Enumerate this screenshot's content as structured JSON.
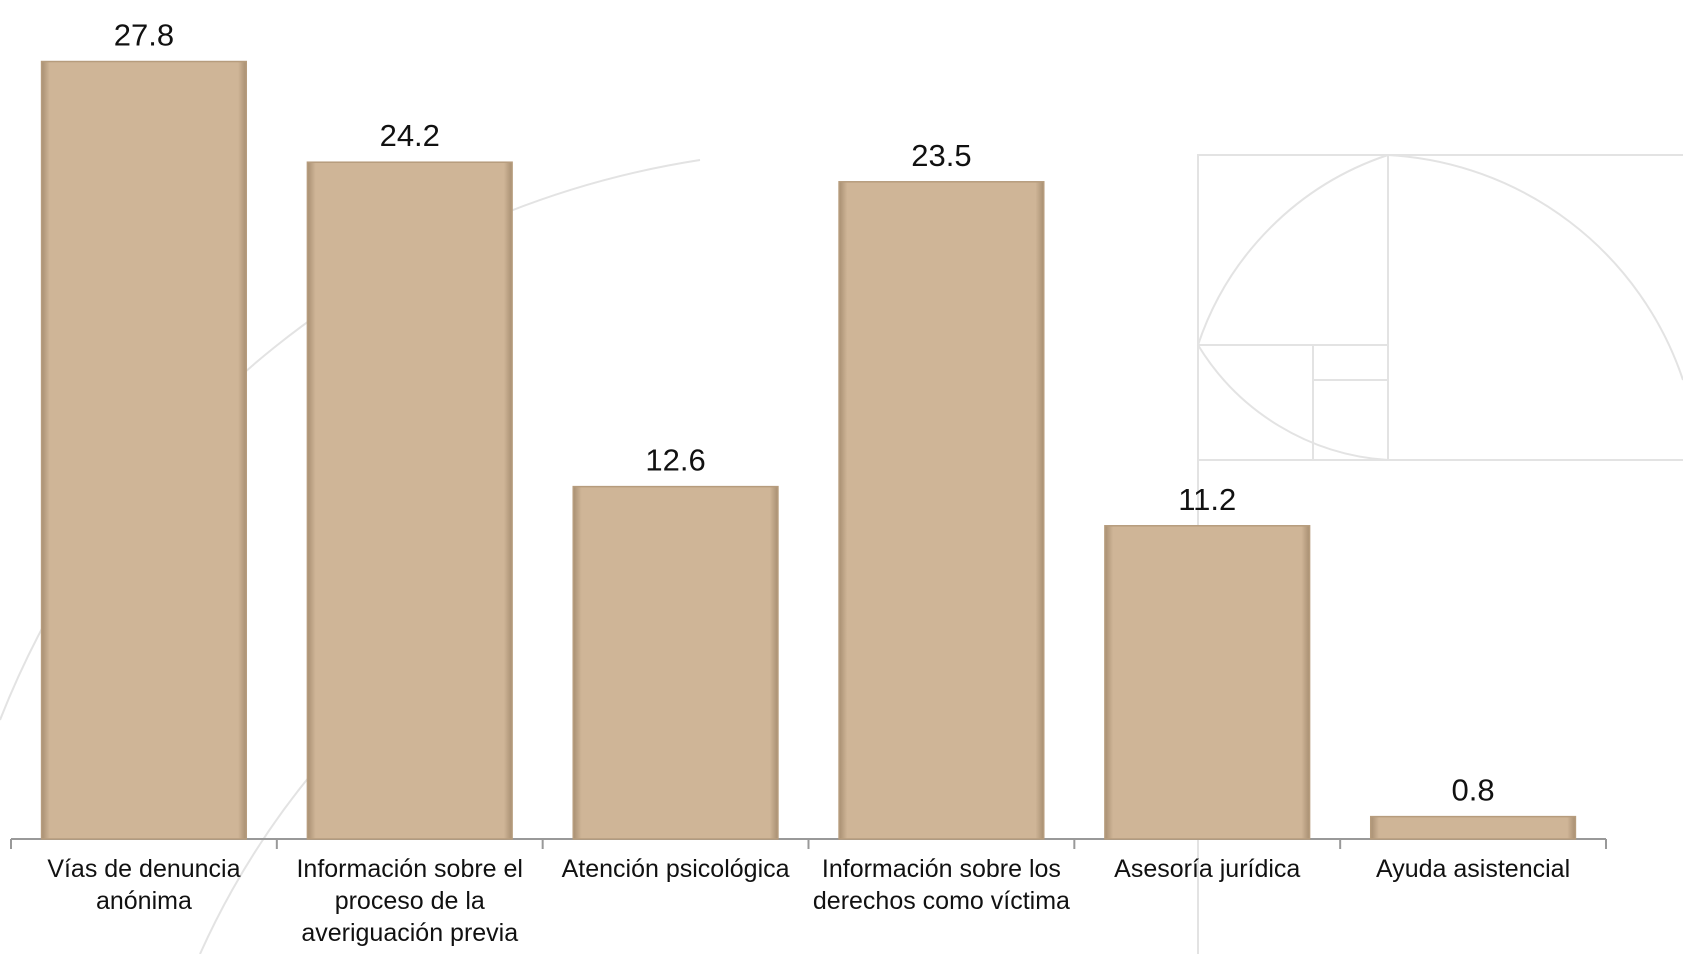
{
  "chart_data": {
    "type": "bar",
    "categories": [
      "Vías de denuncia anónima",
      "Información sobre el proceso de la averiguación previa",
      "Atención psicológica",
      "Información sobre los derechos como víctima",
      "Asesoría jurídica",
      "Ayuda asistencial"
    ],
    "values": [
      27.8,
      24.2,
      12.6,
      23.5,
      11.2,
      0.8
    ],
    "color": "#cfb597",
    "ylim": [
      0,
      30
    ]
  }
}
